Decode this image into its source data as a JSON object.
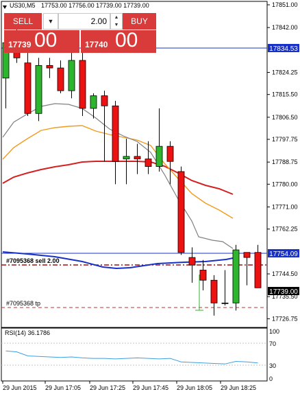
{
  "header": {
    "symbol": "US30,M5",
    "ohlc": "17753.00 17756.00 17739.00 17739.00"
  },
  "trade_panel": {
    "sell_label": "SELL",
    "buy_label": "BUY",
    "volume": "2.00",
    "bid_small": "17739",
    "bid_big": "00",
    "ask_small": "17740",
    "ask_big": "00"
  },
  "price_axis": [
    "17851.00",
    "17842.00",
    "17824.25",
    "17815.50",
    "17806.50",
    "17797.75",
    "17788.75",
    "17780.00",
    "17771.00",
    "17762.25",
    "17744.50",
    "17735.50",
    "17726.75"
  ],
  "price_tags": {
    "top_line": "17834.53",
    "mid_line": "17754.09",
    "current": "17739.00"
  },
  "order_labels": {
    "sell": "#7095368 sell 2.00",
    "tp": "#7095368 tp"
  },
  "rsi": {
    "label": "RSI(14) 36.1786",
    "levels": [
      "100",
      "70",
      "30",
      "0"
    ]
  },
  "time_axis": [
    "29 Jun 2015",
    "29 Jun 17:05",
    "29 Jun 17:25",
    "29 Jun 17:45",
    "29 Jun 18:05",
    "29 Jun 18:25"
  ],
  "colors": {
    "bull": "#2db52d",
    "bear": "#ee1111",
    "panel": "#d93a3a",
    "line_blue": "#1730c8",
    "ma_orange": "#f39a1a",
    "ma_red": "#d42020",
    "ma_gray": "#808080",
    "rsi_line": "#3d9fe0"
  },
  "chart_data": {
    "type": "candlestick",
    "timeframe": "M5",
    "ohlc": [
      [
        17822,
        17838,
        17810,
        17836
      ],
      [
        17836,
        17843,
        17828,
        17830
      ],
      [
        17828,
        17832,
        17807,
        17808
      ],
      [
        17808,
        17830,
        17805,
        17827
      ],
      [
        17827,
        17830,
        17822,
        17826
      ],
      [
        17826,
        17829,
        17816,
        17817
      ],
      [
        17817,
        17832,
        17814,
        17829
      ],
      [
        17829,
        17833,
        17807,
        17810
      ],
      [
        17810,
        17816,
        17806,
        17815
      ],
      [
        17815,
        17817,
        17789,
        17811
      ],
      [
        17811,
        17813,
        17780,
        17789
      ],
      [
        17790,
        17798,
        17780,
        17791
      ],
      [
        17791,
        17796,
        17784,
        17790
      ],
      [
        17790,
        17797,
        17784,
        17787
      ],
      [
        17787,
        17810,
        17785,
        17795
      ],
      [
        17795,
        17797,
        17780,
        17789
      ],
      [
        17785,
        17787,
        17752,
        17753
      ],
      [
        17751,
        17755,
        17741,
        17748
      ],
      [
        17746,
        17750,
        17738,
        17742
      ],
      [
        17742,
        17744,
        17728,
        17733
      ],
      [
        17733,
        17746,
        17732,
        17733
      ],
      [
        17733,
        17756,
        17730,
        17754
      ],
      [
        17753,
        17753,
        17740,
        17751
      ],
      [
        17753,
        17756,
        17739,
        17739
      ]
    ],
    "rsi": [
      60,
      58,
      50,
      49,
      48,
      47,
      48,
      46,
      45,
      45,
      44,
      45,
      46,
      45,
      44,
      45,
      38,
      37,
      36,
      35,
      34,
      39,
      38,
      36
    ],
    "ylim": [
      17724,
      17855
    ]
  }
}
